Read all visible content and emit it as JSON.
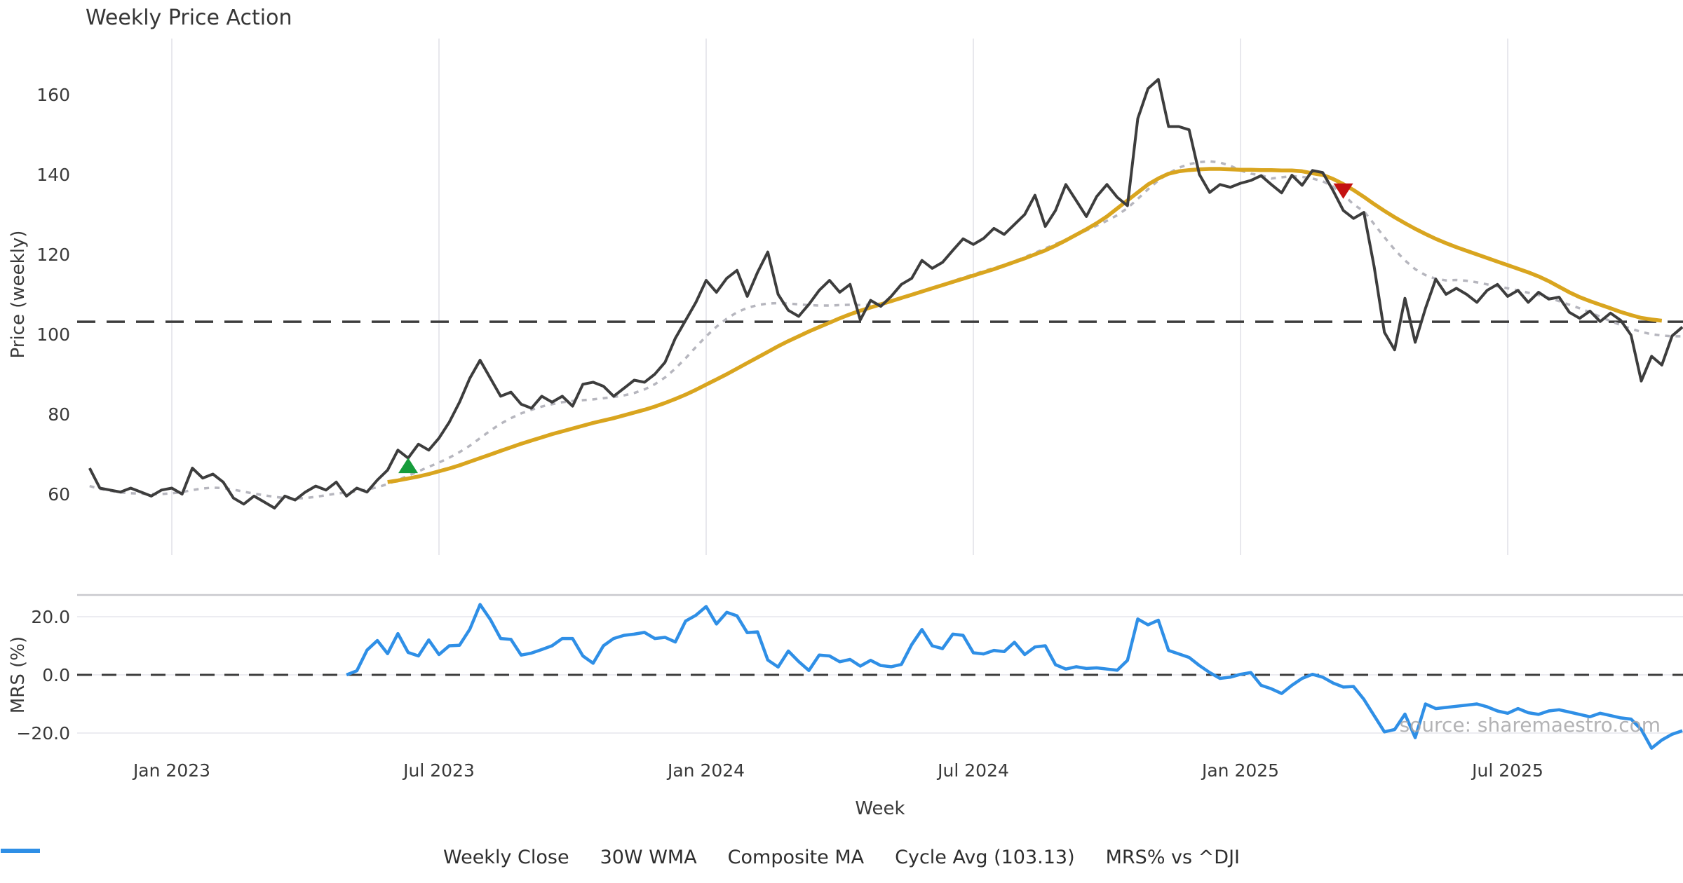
{
  "title": "Weekly Price Action",
  "watermark": "source: sharemaestro.com",
  "colors": {
    "close": "#3d3d3d",
    "wma": "#d9a51f",
    "composite": "#b6b6be",
    "cycle_dash": "#3d3d3d",
    "mrs": "#2f8fe6",
    "buy_marker": "#169c3b",
    "sell_marker": "#c41212",
    "gridline": "#e8e8ed",
    "mrs_gridline": "#ececf1",
    "mrs_top_border": "#c9c9ce"
  },
  "x_axis": {
    "label": "Week",
    "ticks": [
      {
        "week": 0,
        "label": "Jan 2023"
      },
      {
        "week": 26,
        "label": "Jul 2023"
      },
      {
        "week": 52,
        "label": "Jan 2024"
      },
      {
        "week": 78,
        "label": "Jul 2024"
      },
      {
        "week": 104,
        "label": "Jan 2025"
      },
      {
        "week": 130,
        "label": "Jul 2025"
      }
    ]
  },
  "chart_data": [
    {
      "type": "line",
      "title": "Weekly Price Action",
      "xlabel": "Week",
      "ylabel": "Price (weekly)",
      "yticks": [
        60,
        80,
        100,
        120,
        140,
        160
      ],
      "ylim": [
        52,
        170
      ],
      "x_start_date": "2022-11-06",
      "x_unit": "weeks from Jan 2023",
      "grid": "vertical-only",
      "legend_position": "bottom-center",
      "cycle_avg": 103.13,
      "series": [
        {
          "name": "Weekly Close",
          "style": "solid",
          "color_key": "close",
          "start_week": -8,
          "values": [
            66.5,
            61.5,
            61,
            60.5,
            61.5,
            60.5,
            59.5,
            61,
            61.5,
            60,
            66.5,
            64,
            65,
            63,
            59,
            57.5,
            59.5,
            58,
            56.5,
            59.5,
            58.5,
            60.5,
            62,
            61,
            63,
            59.5,
            61.5,
            60.5,
            63.5,
            66,
            71,
            69,
            72.5,
            71,
            74,
            78,
            83,
            89,
            93.5,
            89,
            84.5,
            85.5,
            82.5,
            81.5,
            84.5,
            83,
            84.5,
            82,
            87.5,
            88,
            87,
            84.5,
            86.5,
            88.5,
            88,
            90,
            93,
            99,
            103.5,
            108,
            113.5,
            110.5,
            114,
            116,
            109.5,
            115.5,
            120.6,
            110,
            106,
            104.5,
            107.5,
            111,
            113.5,
            110.5,
            112.5,
            103.6,
            108.5,
            107,
            109.5,
            112.5,
            114,
            118.5,
            116.5,
            118,
            121,
            123.9,
            122.5,
            124,
            126.5,
            125,
            127.5,
            130,
            134.8,
            127,
            131,
            137.5,
            133.5,
            129.5,
            134.5,
            137.5,
            134.3,
            132.2,
            154,
            161.5,
            163.8,
            152,
            152,
            151.2,
            140,
            135.5,
            137.5,
            136.8,
            137.8,
            138.5,
            139.7,
            137.5,
            135.4,
            139.8,
            137.3,
            141,
            140.5,
            136,
            131,
            129,
            130.5,
            117,
            100.5,
            96.1,
            109,
            98,
            106.5,
            113.8,
            110,
            111.5,
            110,
            108,
            111,
            112.5,
            109.5,
            111,
            108,
            110.5,
            108.8,
            109.3,
            105.5,
            104,
            105.8,
            103.2,
            105.3,
            103.5,
            99.8,
            88.3,
            94.5,
            92.3,
            99.6,
            101.8
          ]
        },
        {
          "name": "30W WMA",
          "style": "solid",
          "color_key": "wma",
          "start_week": 21,
          "values": [
            63,
            63.4,
            63.9,
            64.4,
            65,
            65.7,
            66.4,
            67.2,
            68.1,
            69,
            69.9,
            70.8,
            71.7,
            72.6,
            73.4,
            74.2,
            75,
            75.7,
            76.4,
            77.1,
            77.8,
            78.4,
            79,
            79.7,
            80.4,
            81.1,
            81.9,
            82.8,
            83.8,
            84.9,
            86.1,
            87.4,
            88.7,
            90,
            91.4,
            92.8,
            94.2,
            95.6,
            97,
            98.3,
            99.5,
            100.7,
            101.8,
            102.9,
            104,
            105,
            105.9,
            106.7,
            107.5,
            108.3,
            109.1,
            109.9,
            110.7,
            111.5,
            112.3,
            113.1,
            113.9,
            114.7,
            115.5,
            116.3,
            117.2,
            118.1,
            119,
            120,
            121,
            122.2,
            123.5,
            124.9,
            126.3,
            127.8,
            129.5,
            131.5,
            133.5,
            135.5,
            137.5,
            139,
            140.2,
            140.8,
            141.1,
            141.3,
            141.4,
            141.4,
            141.3,
            141.2,
            141.2,
            141.1,
            141.1,
            141,
            141,
            140.8,
            140.3,
            139.9,
            138.9,
            137.6,
            136.1,
            134.4,
            132.6,
            130.9,
            129.3,
            127.8,
            126.4,
            125.1,
            123.9,
            122.8,
            121.8,
            120.9,
            120,
            119.1,
            118.2,
            117.3,
            116.4,
            115.5,
            114.5,
            113.3,
            111.9,
            110.5,
            109.3,
            108.3,
            107.4,
            106.5,
            105.6,
            104.8,
            104.1,
            103.7,
            103.4
          ]
        },
        {
          "name": "Composite MA",
          "style": "dotted",
          "color_key": "composite",
          "start_week": -8,
          "values": [
            62,
            61.3,
            60.8,
            60.4,
            60.2,
            60.1,
            60,
            60,
            60.2,
            60.5,
            61,
            61.4,
            61.6,
            61.5,
            61.1,
            60.6,
            60.1,
            59.7,
            59.3,
            59,
            58.9,
            59,
            59.3,
            59.7,
            60.1,
            60.4,
            60.7,
            61.1,
            61.7,
            62.5,
            63.5,
            64.6,
            65.7,
            66.8,
            67.9,
            69.1,
            70.5,
            72.1,
            74,
            75.9,
            77.6,
            79,
            80.2,
            81.1,
            81.9,
            82.5,
            83,
            83.3,
            83.5,
            83.7,
            84,
            84.3,
            84.7,
            85.3,
            86.2,
            87.5,
            89.2,
            91.4,
            94,
            96.8,
            99.5,
            101.9,
            103.9,
            105.5,
            106.6,
            107.3,
            107.7,
            107.8,
            107.7,
            107.5,
            107.3,
            107.2,
            107.2,
            107.3,
            107.4,
            107.3,
            107.4,
            107.7,
            108.2,
            108.9,
            109.7,
            110.6,
            111.5,
            112.4,
            113.3,
            114.2,
            115,
            115.8,
            116.6,
            117.4,
            118.3,
            119.3,
            120.4,
            121.5,
            122.6,
            123.7,
            124.8,
            126,
            127.2,
            128.4,
            129.8,
            131.6,
            133.9,
            136.3,
            138.5,
            140.3,
            141.7,
            142.6,
            143.1,
            143.3,
            143,
            142.2,
            141,
            140.2,
            139.8,
            139,
            139.3,
            139.6,
            139.4,
            139,
            138.3,
            137,
            135,
            132.5,
            130.8,
            127.6,
            124.3,
            121.2,
            118.5,
            116.3,
            114.8,
            113.9,
            113.5,
            113.6,
            113.4,
            113,
            112.5,
            112,
            111.5,
            111,
            110.4,
            109.8,
            109.1,
            108.3,
            107.4,
            106.5,
            105.5,
            104.4,
            103.3,
            102.3,
            101.4,
            100.6,
            100,
            99.7,
            99.5,
            99.5
          ]
        }
      ],
      "reference_line": {
        "name": "Cycle Avg",
        "value": 103.13,
        "style": "dashed",
        "color_key": "cycle_dash"
      },
      "markers": [
        {
          "type": "triangle-up",
          "meaning": "buy-signal",
          "color_key": "buy_marker",
          "week": 23,
          "price": 67
        },
        {
          "type": "triangle-down",
          "meaning": "sell-signal",
          "color_key": "sell_marker",
          "week": 114,
          "price": 136
        }
      ]
    },
    {
      "type": "line",
      "ylabel": "MRS (%)",
      "yticks": [
        {
          "value": 20,
          "label": "20.0"
        },
        {
          "value": 0,
          "label": "0.0"
        },
        {
          "value": -20,
          "label": "−20.0"
        }
      ],
      "zero_line_dashed": true,
      "grid": "horizontal-only",
      "series": [
        {
          "name": "MRS% vs ^DJI",
          "style": "solid",
          "color_key": "mrs",
          "start_week": 17,
          "values": [
            0,
            1.4,
            8.5,
            11.8,
            7.3,
            14.2,
            7.7,
            6.5,
            12,
            7,
            10,
            10.2,
            15.7,
            24.2,
            19,
            12.5,
            12.2,
            6.8,
            7.5,
            8.7,
            10,
            12.5,
            12.5,
            6.5,
            4,
            10,
            12.5,
            13.6,
            14,
            14.6,
            12.5,
            12.9,
            11.3,
            18.5,
            20.5,
            23.5,
            17.5,
            21.5,
            20.3,
            14.5,
            14.8,
            5.1,
            2.7,
            8.2,
            4.6,
            1.5,
            6.8,
            6.5,
            4.5,
            5.3,
            3,
            5,
            3.2,
            2.8,
            3.6,
            10.4,
            15.6,
            10,
            9,
            14,
            13.6,
            7.6,
            7.2,
            8.4,
            8,
            11.2,
            7,
            9.6,
            10,
            3.5,
            2,
            2.8,
            2.2,
            2.4,
            2,
            1.6,
            5,
            19.2,
            17.2,
            18.8,
            8.4,
            7.2,
            6,
            3.2,
            0.8,
            -1.2,
            -0.8,
            0.2,
            0.8,
            -3.6,
            -4.8,
            -6.4,
            -3.6,
            -1.2,
            0.2,
            -0.8,
            -2.8,
            -4.2,
            -4,
            -8.4,
            -14,
            -19.6,
            -18.8,
            -13.5,
            -21.6,
            -10,
            -11.6,
            -11.2,
            -10.8,
            -10.4,
            -10,
            -11,
            -12.4,
            -13.2,
            -11.6,
            -13,
            -13.6,
            -12.4,
            -12,
            -12.8,
            -13.6,
            -14.4,
            -13.2,
            -14,
            -14.8,
            -15.2,
            -18.8,
            -25.2,
            -22.4,
            -20.4,
            -19.2
          ]
        }
      ]
    }
  ],
  "legend": {
    "items": [
      {
        "label": "Weekly Close",
        "swatch": "solid",
        "color_key": "close"
      },
      {
        "label": "30W WMA",
        "swatch": "solid",
        "color_key": "wma"
      },
      {
        "label": "Composite MA",
        "swatch": "dotted",
        "color_key": "composite"
      },
      {
        "label": "Cycle Avg (103.13)",
        "swatch": "dashed",
        "color_key": "cycle_dash"
      },
      {
        "label": "MRS% vs ^DJI",
        "swatch": "solid",
        "color_key": "mrs"
      }
    ]
  }
}
